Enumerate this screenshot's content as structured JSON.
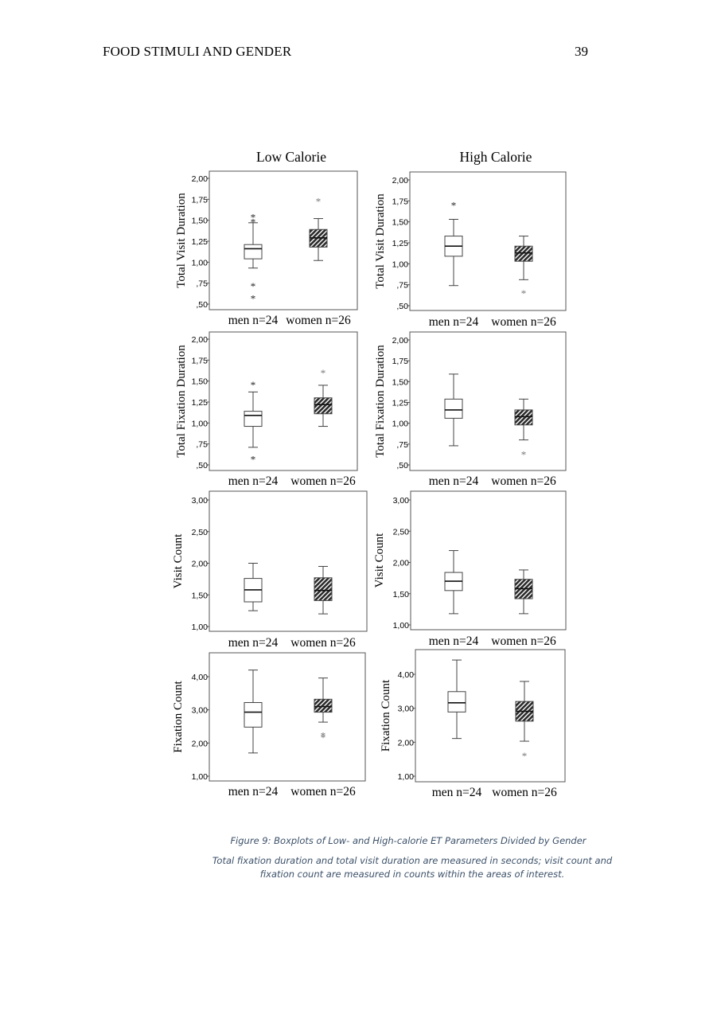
{
  "header": {
    "running_head": "FOOD STIMULI AND GENDER",
    "page_number": "39"
  },
  "figure": {
    "column_titles": [
      "Low Calorie",
      "High Calorie"
    ],
    "caption_title": "Figure 9: Boxplots of Low- and High-calorie ET Parameters Divided by Gender",
    "caption_note": "Total fixation duration and total visit duration are measured in seconds; visit count and fixation count are measured in counts within the areas of interest.",
    "group_labels": [
      "men n=24",
      "women n=26"
    ],
    "group_styles": {
      "men": "open",
      "women": "hatched"
    },
    "colors": {
      "box_outline": "#444444",
      "hatched_fill": "#2a2a2a",
      "frame": "#555555",
      "caption": "#3b5068"
    }
  },
  "chart_data": [
    {
      "type": "boxplot",
      "panel": "Low Calorie",
      "ylabel": "Total Visit Duration",
      "yticks": [
        "2,00",
        "1,75",
        "1,50",
        "1,25",
        "1,00",
        ",75",
        ",50"
      ],
      "ylim": [
        0.5,
        2.0
      ],
      "series": [
        {
          "name": "men n=24",
          "whisker_low": 0.93,
          "q1": 1.04,
          "median": 1.16,
          "q3": 1.21,
          "whisker_high": 1.47,
          "outliers": [
            1.55,
            1.49,
            0.73,
            0.58
          ]
        },
        {
          "name": "women n=26",
          "whisker_low": 1.02,
          "q1": 1.18,
          "median": 1.29,
          "q3": 1.39,
          "whisker_high": 1.52,
          "outliers": [
            1.74
          ]
        }
      ]
    },
    {
      "type": "boxplot",
      "panel": "High Calorie",
      "ylabel": "Total Visit Duration",
      "yticks": [
        "2,00",
        "1,75",
        "1,50",
        "1,25",
        "1,00",
        ",75",
        ",50"
      ],
      "ylim": [
        0.5,
        2.0
      ],
      "series": [
        {
          "name": "men n=24",
          "whisker_low": 0.74,
          "q1": 1.09,
          "median": 1.21,
          "q3": 1.33,
          "whisker_high": 1.53,
          "outliers": [
            1.71
          ]
        },
        {
          "name": "women n=26",
          "whisker_low": 0.81,
          "q1": 1.03,
          "median": 1.13,
          "q3": 1.21,
          "whisker_high": 1.33,
          "outliers": [
            0.66
          ]
        }
      ]
    },
    {
      "type": "boxplot",
      "panel": "Low Calorie",
      "ylabel": "Total Fixation Duration",
      "yticks": [
        "2,00",
        "1,75",
        "1,50",
        "1,25",
        "1,00",
        ",75",
        ",50"
      ],
      "ylim": [
        0.5,
        2.0
      ],
      "series": [
        {
          "name": "men n=24",
          "whisker_low": 0.71,
          "q1": 0.96,
          "median": 1.09,
          "q3": 1.14,
          "whisker_high": 1.37,
          "outliers": [
            1.47,
            0.58
          ]
        },
        {
          "name": "women n=26",
          "whisker_low": 0.96,
          "q1": 1.11,
          "median": 1.22,
          "q3": 1.3,
          "whisker_high": 1.45,
          "outliers": [
            1.61
          ]
        }
      ]
    },
    {
      "type": "boxplot",
      "panel": "High Calorie",
      "ylabel": "Total Fixation Duration",
      "yticks": [
        "2,00",
        "1,75",
        "1,50",
        "1,25",
        "1,00",
        ",75",
        ",50"
      ],
      "ylim": [
        0.5,
        2.0
      ],
      "series": [
        {
          "name": "men n=24",
          "whisker_low": 0.73,
          "q1": 1.06,
          "median": 1.16,
          "q3": 1.29,
          "whisker_high": 1.59,
          "outliers": []
        },
        {
          "name": "women n=26",
          "whisker_low": 0.8,
          "q1": 0.98,
          "median": 1.08,
          "q3": 1.16,
          "whisker_high": 1.29,
          "outliers": [
            0.64
          ]
        }
      ]
    },
    {
      "type": "boxplot",
      "panel": "Low Calorie",
      "ylabel": "Visit Count",
      "yticks": [
        "3,00",
        "2,50",
        "2,00",
        "1,50",
        "1,00"
      ],
      "ylim": [
        1.0,
        3.0
      ],
      "series": [
        {
          "name": "men n=24",
          "whisker_low": 1.25,
          "q1": 1.39,
          "median": 1.58,
          "q3": 1.76,
          "whisker_high": 2.0,
          "outliers": []
        },
        {
          "name": "women n=26",
          "whisker_low": 1.2,
          "q1": 1.41,
          "median": 1.57,
          "q3": 1.77,
          "whisker_high": 1.95,
          "outliers": []
        }
      ]
    },
    {
      "type": "boxplot",
      "panel": "High Calorie",
      "ylabel": "Visit Count",
      "yticks": [
        "3,00",
        "2,50",
        "2,00",
        "1,50",
        "1,00"
      ],
      "ylim": [
        1.0,
        3.0
      ],
      "series": [
        {
          "name": "men n=24",
          "whisker_low": 1.18,
          "q1": 1.55,
          "median": 1.7,
          "q3": 1.84,
          "whisker_high": 2.19,
          "outliers": []
        },
        {
          "name": "women n=26",
          "whisker_low": 1.18,
          "q1": 1.42,
          "median": 1.58,
          "q3": 1.73,
          "whisker_high": 1.88,
          "outliers": []
        }
      ]
    },
    {
      "type": "boxplot",
      "panel": "Low Calorie",
      "ylabel": "Fixation Count",
      "yticks": [
        "4,00",
        "3,00",
        "2,00",
        "1,00"
      ],
      "ylim": [
        1.0,
        4.5
      ],
      "series": [
        {
          "name": "men n=24",
          "whisker_low": 1.7,
          "q1": 2.48,
          "median": 2.93,
          "q3": 3.22,
          "whisker_high": 4.2,
          "outliers": []
        },
        {
          "name": "women n=26",
          "whisker_low": 2.63,
          "q1": 2.93,
          "median": 3.1,
          "q3": 3.32,
          "whisker_high": 3.96,
          "outliers": [
            2.26,
            2.2
          ]
        }
      ]
    },
    {
      "type": "boxplot",
      "panel": "High Calorie",
      "ylabel": "Fixation Count",
      "yticks": [
        "4,00",
        "3,00",
        "2,00",
        "1,00"
      ],
      "ylim": [
        1.0,
        4.5
      ],
      "series": [
        {
          "name": "men n=24",
          "whisker_low": 2.11,
          "q1": 2.89,
          "median": 3.16,
          "q3": 3.49,
          "whisker_high": 4.42,
          "outliers": []
        },
        {
          "name": "women n=26",
          "whisker_low": 2.03,
          "q1": 2.62,
          "median": 2.91,
          "q3": 3.2,
          "whisker_high": 3.79,
          "outliers": [
            1.63
          ]
        }
      ]
    }
  ]
}
